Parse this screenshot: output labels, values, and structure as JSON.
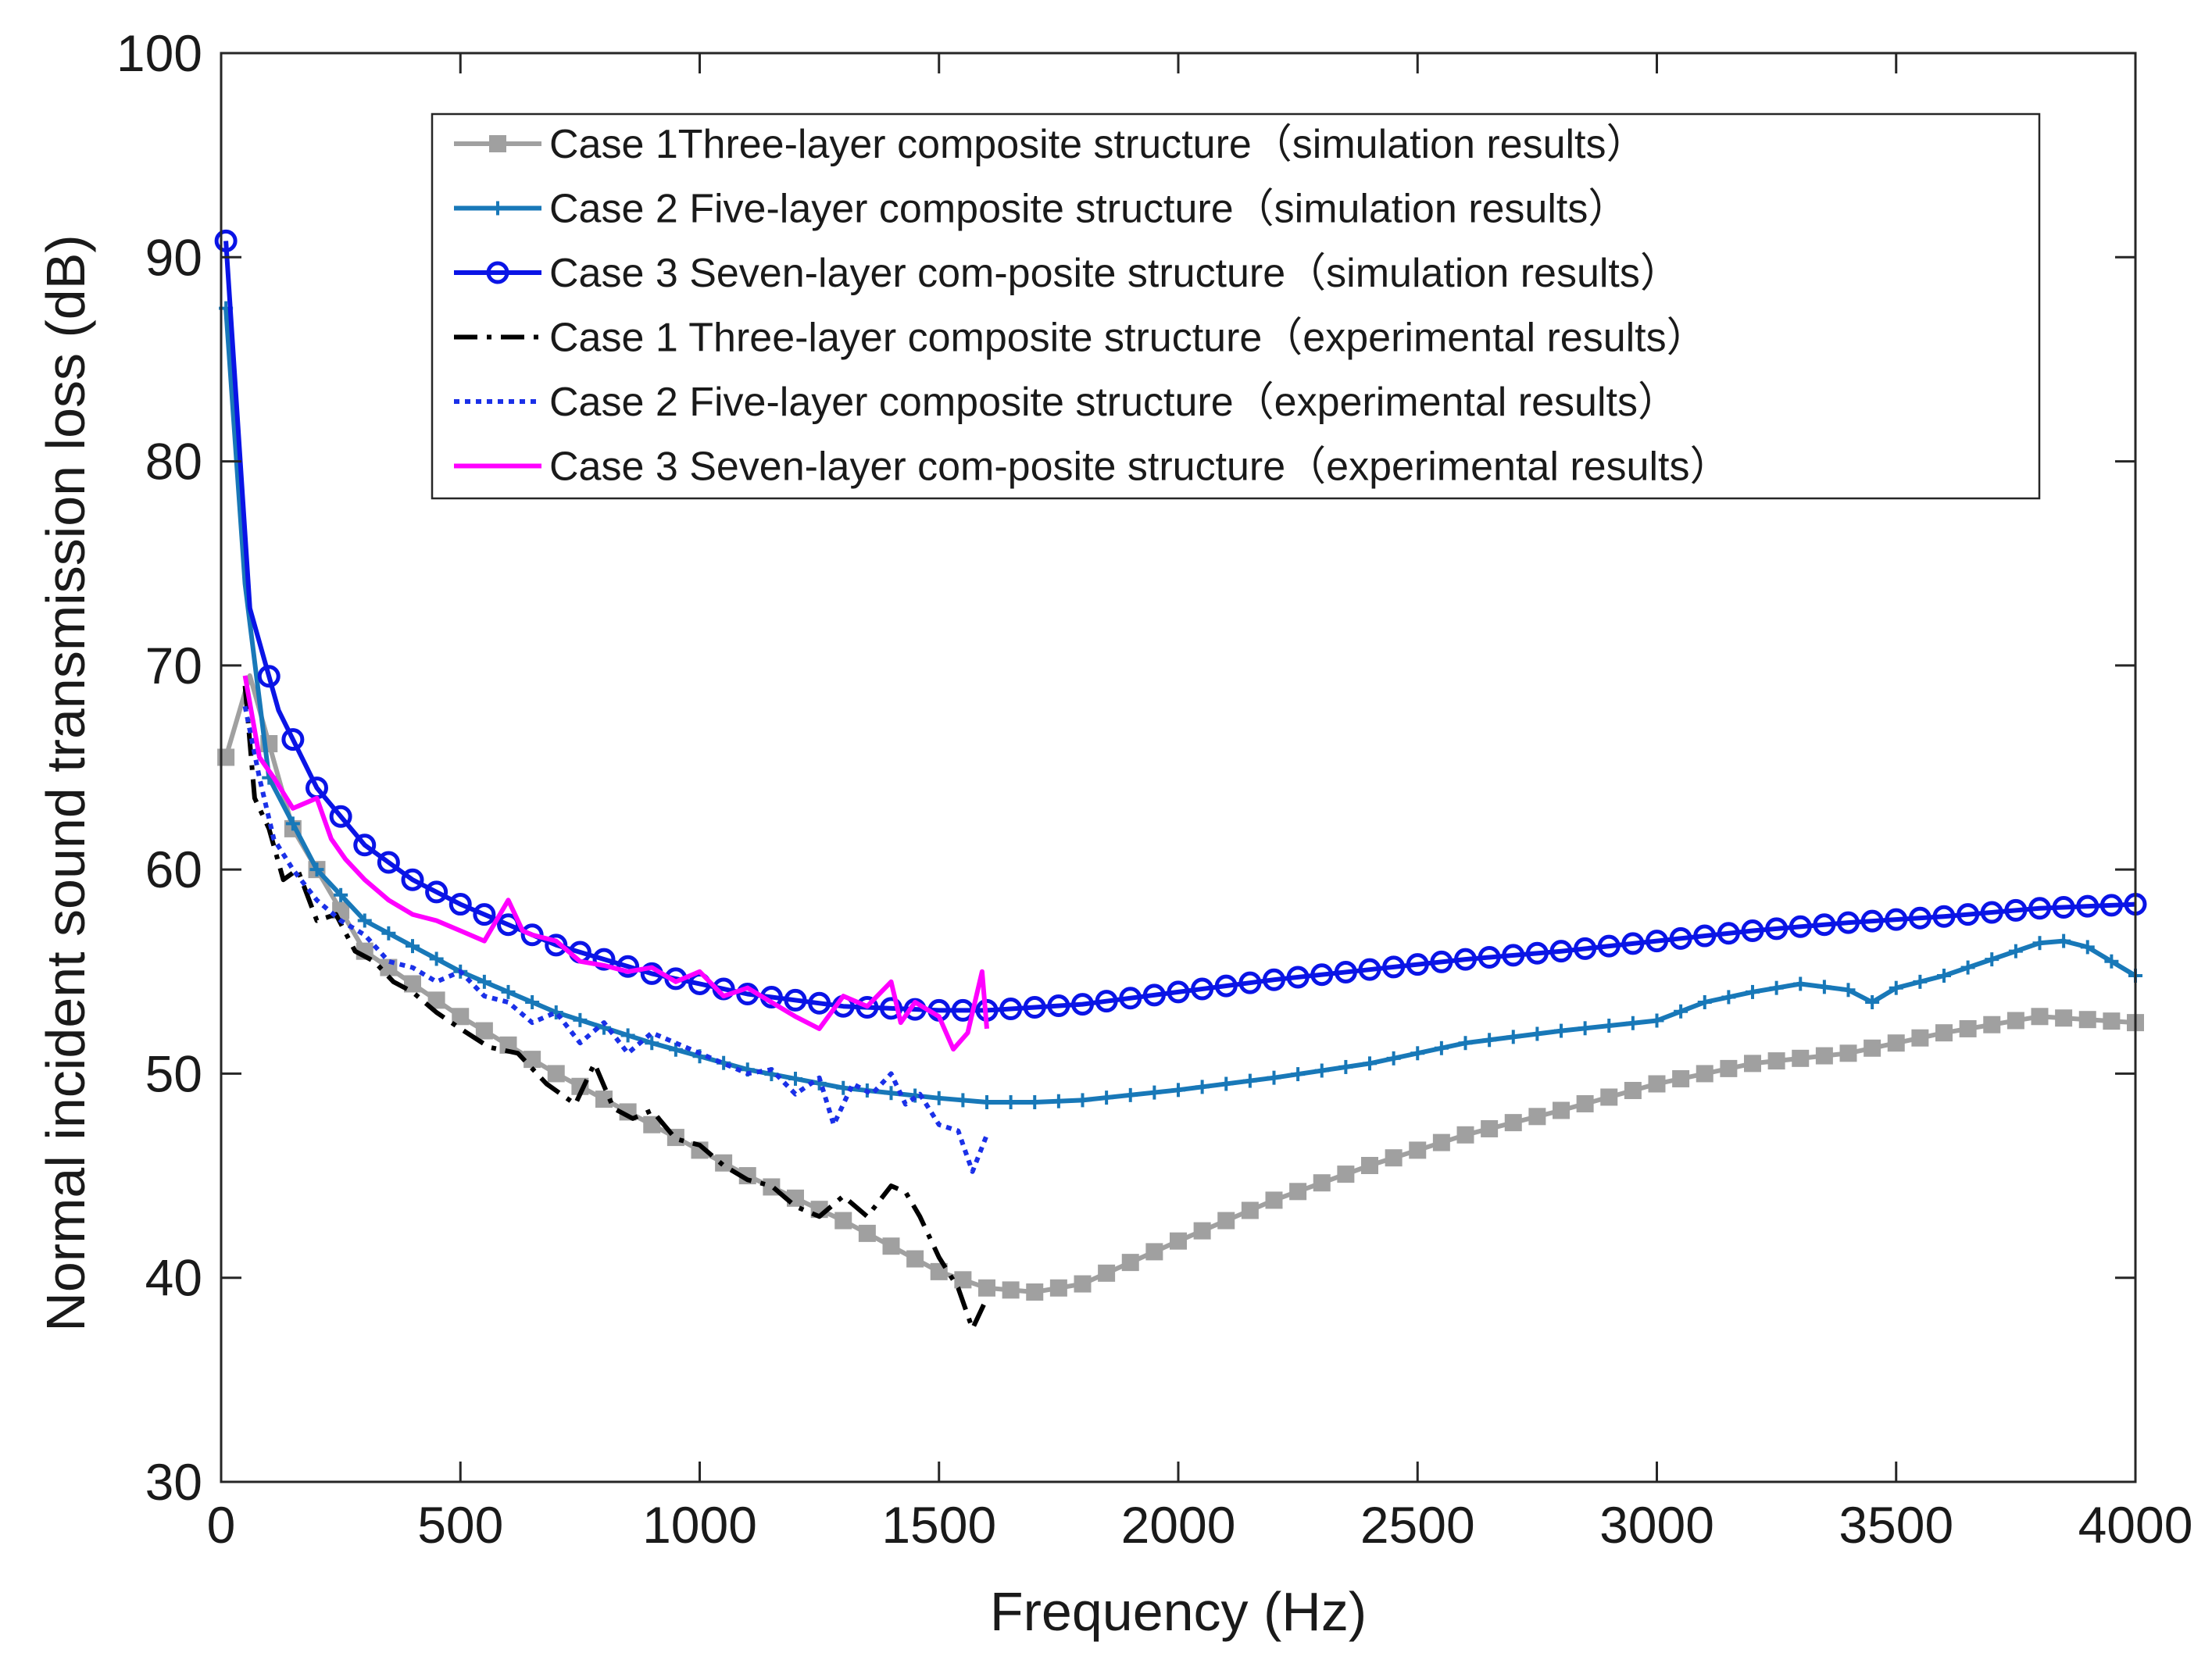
{
  "chart_data": {
    "type": "line",
    "title": "",
    "xlabel": "Frequency (Hz)",
    "ylabel": "Normal incident sound transmission loss (dB)",
    "xlim": [
      0,
      4000
    ],
    "ylim": [
      30,
      100
    ],
    "xticks": [
      0,
      500,
      1000,
      1500,
      2000,
      2500,
      3000,
      3500,
      4000
    ],
    "yticks": [
      30,
      40,
      50,
      60,
      70,
      80,
      90,
      100
    ],
    "xtick_labels": [
      "0",
      "500",
      "1000",
      "1500",
      "2000",
      "2500",
      "3000",
      "3500",
      "4000"
    ],
    "ytick_labels": [
      "30",
      "40",
      "50",
      "60",
      "70",
      "80",
      "90",
      "100"
    ],
    "grid": false,
    "legend_position": "top-right",
    "series": [
      {
        "name": "Case 1Three-layer composite structure（simulation results）",
        "color": "#a0a0a0",
        "style": "solid",
        "marker": "square",
        "x": [
          10,
          60,
          150,
          300,
          500,
          700,
          900,
          1100,
          1300,
          1500,
          1600,
          1700,
          1800,
          2000,
          2200,
          2400,
          2600,
          2800,
          3000,
          3200,
          3400,
          3600,
          3800,
          4000
        ],
        "y": [
          65.5,
          69.5,
          62,
          56,
          52.8,
          50,
          47.5,
          45,
          42.8,
          40.3,
          39.5,
          39.3,
          39.7,
          41.8,
          43.8,
          45.5,
          47,
          48.2,
          49.5,
          50.5,
          51,
          52,
          52.8,
          52.5
        ]
      },
      {
        "name": "Case 2 Five-layer composite structure（simulation results）",
        "color": "#1878b8",
        "style": "solid",
        "marker": "plus",
        "x": [
          10,
          50,
          100,
          200,
          300,
          500,
          700,
          900,
          1100,
          1300,
          1500,
          1600,
          1700,
          1800,
          2000,
          2200,
          2400,
          2600,
          2800,
          3000,
          3100,
          3200,
          3300,
          3400,
          3450,
          3500,
          3600,
          3700,
          3800,
          3850,
          3900,
          4000
        ],
        "y": [
          87.5,
          74,
          64.5,
          60,
          57.5,
          55,
          53,
          51.5,
          50.2,
          49.3,
          48.8,
          48.6,
          48.6,
          48.7,
          49.2,
          49.8,
          50.5,
          51.5,
          52.1,
          52.6,
          53.5,
          54,
          54.4,
          54.1,
          53.5,
          54.2,
          54.8,
          55.6,
          56.4,
          56.5,
          56.2,
          54.8
        ]
      },
      {
        "name": "Case 3 Seven-layer com-posite structure（simulation results）",
        "color": "#0a14e6",
        "style": "solid",
        "marker": "circle",
        "x": [
          10,
          60,
          120,
          200,
          300,
          400,
          500,
          700,
          900,
          1100,
          1300,
          1500,
          1600,
          1800,
          2000,
          2200,
          2400,
          2600,
          2800,
          3000,
          3200,
          3400,
          3600,
          3800,
          4000
        ],
        "y": [
          90.8,
          72.8,
          67.8,
          64,
          61.2,
          59.5,
          58.3,
          56.3,
          54.9,
          53.9,
          53.3,
          53.1,
          53.1,
          53.4,
          54,
          54.6,
          55.1,
          55.6,
          56,
          56.5,
          57,
          57.4,
          57.7,
          58.1,
          58.3
        ]
      },
      {
        "name": "Case 1 Three-layer composite structure（experimental results）",
        "color": "#000000",
        "style": "dashdot",
        "marker": "none",
        "x": [
          50,
          70,
          100,
          130,
          160,
          200,
          240,
          280,
          320,
          360,
          400,
          450,
          500,
          560,
          620,
          680,
          740,
          780,
          820,
          860,
          900,
          950,
          1000,
          1050,
          1100,
          1150,
          1200,
          1250,
          1300,
          1350,
          1400,
          1430,
          1460,
          1500,
          1540,
          1570,
          1600
        ],
        "y": [
          69,
          63.5,
          62,
          59.5,
          60,
          57.5,
          57.8,
          56,
          55.5,
          54.5,
          54,
          53,
          52.2,
          51.3,
          51,
          49.5,
          48.5,
          50.5,
          48.3,
          47.8,
          48.2,
          46.8,
          46.5,
          45.5,
          44.8,
          44.5,
          43.5,
          43,
          44,
          43,
          44.5,
          44.2,
          43,
          41,
          39.5,
          37.5,
          39
        ]
      },
      {
        "name": "Case 2 Five-layer composite structure（experimental results）",
        "color": "#1a30e8",
        "style": "dotted",
        "marker": "none",
        "x": [
          50,
          80,
          110,
          150,
          200,
          250,
          300,
          350,
          400,
          450,
          500,
          550,
          600,
          650,
          700,
          750,
          800,
          850,
          900,
          950,
          1000,
          1050,
          1100,
          1150,
          1200,
          1250,
          1280,
          1320,
          1360,
          1400,
          1430,
          1460,
          1500,
          1540,
          1570,
          1600
        ],
        "y": [
          68,
          64.5,
          61.5,
          60,
          58.5,
          57.5,
          56.8,
          55.5,
          55.2,
          54.5,
          55,
          53.8,
          53.5,
          52.5,
          53,
          51.5,
          52.5,
          51,
          52,
          51.5,
          51,
          50.5,
          50,
          50.2,
          49,
          49.8,
          47.5,
          49.5,
          49,
          50,
          48.5,
          49,
          47.5,
          47.2,
          45.2,
          47
        ]
      },
      {
        "name": "Case 3 Seven-layer com-posite structure（experimental results）",
        "color": "#ff00ff",
        "style": "solid",
        "marker": "none",
        "x": [
          50,
          80,
          110,
          150,
          200,
          230,
          260,
          300,
          350,
          400,
          450,
          500,
          550,
          600,
          630,
          650,
          700,
          750,
          800,
          850,
          900,
          950,
          1000,
          1050,
          1100,
          1150,
          1200,
          1250,
          1300,
          1350,
          1400,
          1420,
          1450,
          1500,
          1530,
          1560,
          1590,
          1600
        ],
        "y": [
          69.5,
          65.5,
          64.5,
          63,
          63.5,
          61.5,
          60.5,
          59.5,
          58.5,
          57.8,
          57.5,
          57,
          56.5,
          58.5,
          57,
          56.8,
          56.5,
          55.5,
          55.3,
          55,
          55.2,
          54.5,
          55,
          53.8,
          54.2,
          53.5,
          52.8,
          52.2,
          53.8,
          53.3,
          54.5,
          52.5,
          53.5,
          52.8,
          51.2,
          52,
          55,
          52.2
        ]
      }
    ]
  }
}
